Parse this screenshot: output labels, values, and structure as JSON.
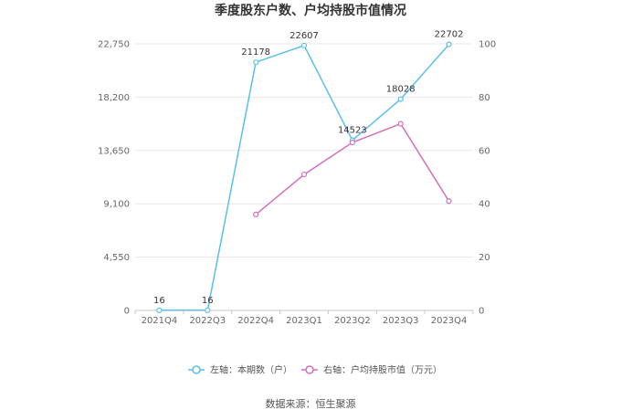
{
  "chart_data": {
    "type": "line",
    "title": "季度股东户数、户均持股市值情况",
    "categories": [
      "2021Q4",
      "2022Q3",
      "2022Q4",
      "2023Q1",
      "2023Q2",
      "2023Q3",
      "2023Q4"
    ],
    "series": [
      {
        "name": "左轴：本期数（户）",
        "axis": "left",
        "color": "#5bbfe9",
        "values": [
          16,
          16,
          21178,
          22607,
          14523,
          18028,
          22702
        ],
        "labels": [
          "16",
          "16",
          "21178",
          "22607",
          "14523",
          "18028",
          "22702"
        ]
      },
      {
        "name": "右轴：户均持股市值（万元）",
        "axis": "right",
        "color": "#d36fbf",
        "values": [
          null,
          null,
          36,
          51,
          63,
          70,
          41
        ]
      }
    ],
    "y_left": {
      "min": 0,
      "max": 22750,
      "ticks": [
        0,
        4550,
        9100,
        13650,
        18200,
        22750
      ],
      "tick_labels": [
        "0",
        "4,550",
        "9,100",
        "13,650",
        "18,200",
        "22,750"
      ]
    },
    "y_right": {
      "min": 0,
      "max": 100,
      "ticks": [
        0,
        20,
        40,
        60,
        80,
        100
      ],
      "tick_labels": [
        "0",
        "20",
        "40",
        "60",
        "80",
        "100"
      ]
    },
    "grid": true,
    "legend_position": "bottom"
  },
  "source_text": "数据来源：恒生聚源"
}
